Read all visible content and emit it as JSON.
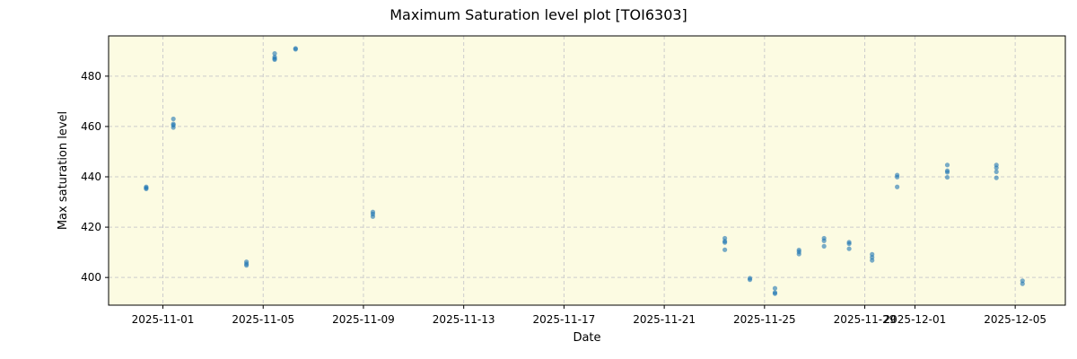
{
  "figure": {
    "title": "Maximum Saturation level plot [TOI6303]",
    "xlabel": "Date",
    "ylabel": "Max saturation level",
    "background": "#ffffff",
    "axes_facecolor": "#fcfbe2",
    "point_color": "#1f77b4",
    "grid_color": "#cccccc"
  },
  "chart_data": {
    "type": "scatter",
    "title": "Maximum Saturation level plot [TOI6303]",
    "xlabel": "Date",
    "ylabel": "Max saturation level",
    "x_tick_labels": [
      "2025-11-01",
      "2025-11-05",
      "2025-11-09",
      "2025-11-13",
      "2025-11-17",
      "2025-11-21",
      "2025-11-25",
      "2025-11-29",
      "2025-12-01",
      "2025-12-05"
    ],
    "y_tick_labels": [
      "400",
      "420",
      "440",
      "460",
      "480"
    ],
    "ylim": [
      389,
      496
    ],
    "xlim": [
      "2025-10-29T20:00",
      "2025-12-07T00:00"
    ],
    "grid": true,
    "legend": null,
    "series": [
      {
        "name": "Max saturation level",
        "points": [
          {
            "x": "2025-10-31T08:00",
            "y": 436.0
          },
          {
            "x": "2025-10-31T08:00",
            "y": 435.2
          },
          {
            "x": "2025-10-31T08:00",
            "y": 435.6
          },
          {
            "x": "2025-11-01T10:00",
            "y": 463.0
          },
          {
            "x": "2025-11-01T10:00",
            "y": 461.0
          },
          {
            "x": "2025-11-01T10:00",
            "y": 460.5
          },
          {
            "x": "2025-11-01T10:00",
            "y": 459.6
          },
          {
            "x": "2025-11-04T08:00",
            "y": 406.2
          },
          {
            "x": "2025-11-04T08:00",
            "y": 405.4
          },
          {
            "x": "2025-11-04T08:00",
            "y": 404.8
          },
          {
            "x": "2025-11-05T11:00",
            "y": 489.0
          },
          {
            "x": "2025-11-05T11:00",
            "y": 487.6
          },
          {
            "x": "2025-11-05T11:00",
            "y": 487.0
          },
          {
            "x": "2025-11-05T11:00",
            "y": 486.6
          },
          {
            "x": "2025-11-06T07:00",
            "y": 491.0
          },
          {
            "x": "2025-11-06T07:00",
            "y": 490.7
          },
          {
            "x": "2025-11-09T09:00",
            "y": 426.0
          },
          {
            "x": "2025-11-09T09:00",
            "y": 425.2
          },
          {
            "x": "2025-11-09T09:00",
            "y": 424.2
          },
          {
            "x": "2025-11-23T10:00",
            "y": 415.6
          },
          {
            "x": "2025-11-23T10:00",
            "y": 414.4
          },
          {
            "x": "2025-11-23T10:00",
            "y": 413.9
          },
          {
            "x": "2025-11-23T10:00",
            "y": 411.0
          },
          {
            "x": "2025-11-24T10:00",
            "y": 399.7
          },
          {
            "x": "2025-11-24T10:00",
            "y": 399.1
          },
          {
            "x": "2025-11-25T10:00",
            "y": 395.7
          },
          {
            "x": "2025-11-25T10:00",
            "y": 394.0
          },
          {
            "x": "2025-11-25T10:00",
            "y": 393.6
          },
          {
            "x": "2025-11-26T09:00",
            "y": 410.9
          },
          {
            "x": "2025-11-26T09:00",
            "y": 410.2
          },
          {
            "x": "2025-11-26T09:00",
            "y": 409.3
          },
          {
            "x": "2025-11-27T09:00",
            "y": 415.6
          },
          {
            "x": "2025-11-27T09:00",
            "y": 414.6
          },
          {
            "x": "2025-11-27T09:00",
            "y": 412.4
          },
          {
            "x": "2025-11-28T09:00",
            "y": 414.0
          },
          {
            "x": "2025-11-28T09:00",
            "y": 413.4
          },
          {
            "x": "2025-11-28T09:00",
            "y": 411.4
          },
          {
            "x": "2025-11-29T07:00",
            "y": 409.2
          },
          {
            "x": "2025-11-29T07:00",
            "y": 408.0
          },
          {
            "x": "2025-11-29T07:00",
            "y": 406.8
          },
          {
            "x": "2025-11-30T07:00",
            "y": 440.7
          },
          {
            "x": "2025-11-30T07:00",
            "y": 439.9
          },
          {
            "x": "2025-11-30T07:00",
            "y": 436.0
          },
          {
            "x": "2025-12-02T07:00",
            "y": 444.7
          },
          {
            "x": "2025-12-02T07:00",
            "y": 442.4
          },
          {
            "x": "2025-12-02T07:00",
            "y": 441.8
          },
          {
            "x": "2025-12-02T07:00",
            "y": 439.8
          },
          {
            "x": "2025-12-04T06:00",
            "y": 444.7
          },
          {
            "x": "2025-12-04T06:00",
            "y": 443.6
          },
          {
            "x": "2025-12-04T06:00",
            "y": 442.0
          },
          {
            "x": "2025-12-04T06:00",
            "y": 439.6
          },
          {
            "x": "2025-12-05T07:00",
            "y": 398.7
          },
          {
            "x": "2025-12-05T07:00",
            "y": 397.5
          }
        ]
      }
    ]
  }
}
